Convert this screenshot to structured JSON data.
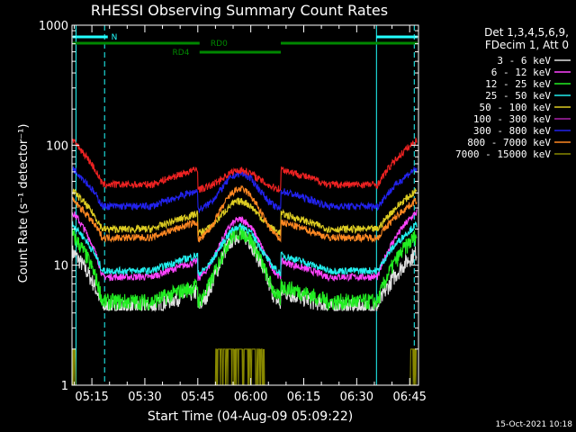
{
  "chart_data": {
    "type": "line",
    "title": "RHESSI Observing Summary Count Rates",
    "xlabel": "Start Time (04-Aug-09 05:09:22)",
    "ylabel": "Count Rate (s⁻¹ detector⁻¹)",
    "x_ticks": [
      "05:15",
      "05:30",
      "05:45",
      "06:00",
      "06:15",
      "06:30",
      "06:45"
    ],
    "x_tick_minutes": [
      315,
      330,
      345,
      360,
      375,
      390,
      405
    ],
    "xlim_minutes": [
      309.37,
      407.5
    ],
    "y_scale": "log",
    "ylim": [
      1,
      1000
    ],
    "y_ticks": [
      "1",
      "10",
      "100",
      "1000"
    ],
    "legend_header": [
      "Det 1,3,4,5,6,9,",
      "FDecim 1, Att 0"
    ],
    "legend_placement": "right",
    "series": [
      {
        "name": "3 - 6 keV",
        "color": "#e0e0e0",
        "edge": 13,
        "floor": 4.5,
        "peak": 18
      },
      {
        "name": "6 - 12 keV",
        "color": "#ff44ff",
        "edge": 28,
        "floor": 8,
        "peak": 24
      },
      {
        "name": "12 - 25 keV",
        "color": "#22ee22",
        "edge": 18,
        "floor": 5,
        "peak": 19
      },
      {
        "name": "25 - 50 keV",
        "color": "#22eeee",
        "edge": 22,
        "floor": 9,
        "peak": 21
      },
      {
        "name": "50 - 100 keV",
        "color": "#ddcc22",
        "edge": 42,
        "floor": 20,
        "peak": 34
      },
      {
        "name": "100 - 300 keV",
        "color": "#aa22aa",
        "edge": 0,
        "floor": 0,
        "peak": 0
      },
      {
        "name": "300 - 800 keV",
        "color": "#2222ee",
        "edge": 65,
        "floor": 31,
        "peak": 58
      },
      {
        "name": "800 - 7000 keV",
        "color": "#ff8822",
        "edge": 35,
        "floor": 17,
        "peak": 43
      },
      {
        "name": "7000 - 15000 keV",
        "color": "#888800",
        "edge": 2.0,
        "floor": 1,
        "peak": 2.2
      },
      {
        "name": "",
        "color": "#ee2222",
        "edge": 110,
        "floor": 47,
        "peak": 62
      }
    ],
    "flags": [
      {
        "label": "N",
        "color": "#22ffff"
      },
      {
        "label": "RD0",
        "color": "#008800"
      },
      {
        "label": "RD4",
        "color": "#008800"
      }
    ],
    "timestamp": "15-Oct-2021 10:18"
  }
}
